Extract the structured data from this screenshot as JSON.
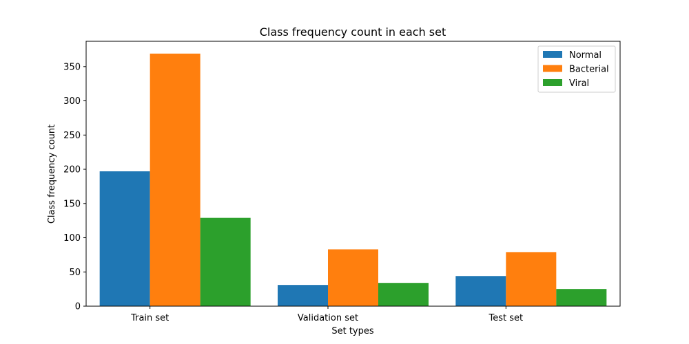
{
  "chart_data": {
    "type": "bar",
    "title": "Class frequency count in each set",
    "xlabel": "Set types",
    "ylabel": "Class frequency count",
    "categories": [
      "Train set",
      "Validation set",
      "Test set"
    ],
    "series": [
      {
        "name": "Normal",
        "values": [
          197,
          31,
          44
        ],
        "color": "#1f77b4"
      },
      {
        "name": "Bacterial",
        "values": [
          369,
          83,
          79
        ],
        "color": "#ff7f0e"
      },
      {
        "name": "Viral",
        "values": [
          129,
          34,
          25
        ],
        "color": "#2ca02c"
      }
    ],
    "ylim": [
      0,
      387
    ],
    "yticks": [
      0,
      50,
      100,
      150,
      200,
      250,
      300,
      350
    ],
    "grid": false,
    "legend_position": "top-right"
  }
}
